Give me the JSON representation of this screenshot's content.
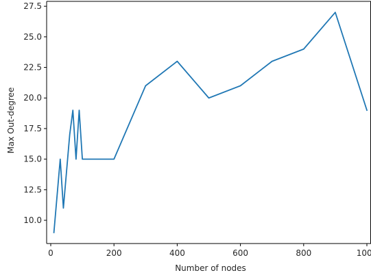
{
  "chart_data": {
    "type": "line",
    "title": "",
    "xlabel": "Number of nodes",
    "ylabel": "Max Out-degree",
    "xlim": [
      -13,
      1013
    ],
    "ylim": [
      8.1,
      27.9
    ],
    "xticks": [
      0,
      200,
      400,
      600,
      800,
      1000
    ],
    "xtick_labels": [
      "0",
      "200",
      "400",
      "600",
      "800",
      "1000"
    ],
    "yticks": [
      10.0,
      12.5,
      15.0,
      17.5,
      20.0,
      22.5,
      25.0,
      27.5
    ],
    "ytick_labels": [
      "10.0",
      "12.5",
      "15.0",
      "17.5",
      "20.0",
      "22.5",
      "25.0",
      "27.5"
    ],
    "grid": false,
    "legend": "none",
    "series": [
      {
        "color": "#1f77b4",
        "x": [
          10,
          30,
          40,
          60,
          70,
          80,
          90,
          100,
          200,
          300,
          400,
          500,
          600,
          700,
          800,
          900,
          1000
        ],
        "y": [
          9,
          15,
          11,
          17,
          19,
          15,
          19,
          15,
          15,
          21,
          23,
          20,
          21,
          23,
          24,
          27,
          19
        ]
      }
    ]
  }
}
